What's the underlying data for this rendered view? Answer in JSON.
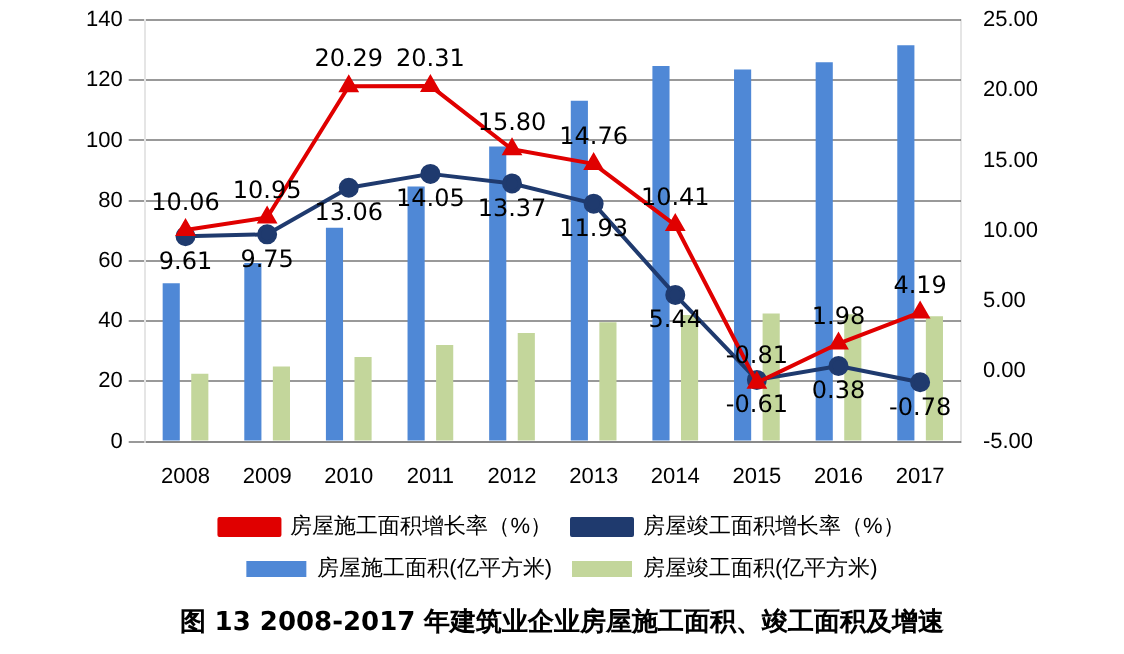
{
  "chart_data": {
    "type": "bar",
    "title": "图 13   2008-2017 年建筑业企业房屋施工面积、竣工面积及增速",
    "categories": [
      "2008",
      "2009",
      "2010",
      "2011",
      "2012",
      "2013",
      "2014",
      "2015",
      "2016",
      "2017"
    ],
    "series": [
      {
        "name": "房屋施工面积(亿平方米)",
        "color": "#4f88d6",
        "values": [
          52.6,
          59.3,
          71.0,
          84.7,
          98.0,
          113.2,
          124.7,
          123.6,
          126.0,
          131.6
        ]
      },
      {
        "name": "房屋竣工面积(亿平方米)",
        "color": "#c3d69b",
        "values": [
          22.5,
          24.9,
          28.1,
          32.1,
          36.1,
          39.6,
          42.0,
          42.5,
          42.3,
          41.6
        ]
      },
      {
        "name": "房屋施工面积增长率（%）",
        "type": "line",
        "axis": "y2",
        "color": "#e00000",
        "marker": "triangle",
        "values": [
          10.06,
          10.95,
          20.29,
          20.31,
          15.8,
          14.76,
          10.41,
          -0.81,
          1.98,
          4.19
        ],
        "value_labels": [
          "10.06",
          "10.95",
          "20.29",
          "20.31",
          "15.80",
          "14.76",
          "10.41",
          "-0.81",
          "1.98",
          "4.19"
        ]
      },
      {
        "name": "房屋竣工面积增长率（%）",
        "type": "line",
        "axis": "y2",
        "color": "#1f3a6e",
        "marker": "circle",
        "values": [
          9.61,
          9.75,
          13.06,
          14.05,
          13.37,
          11.93,
          5.44,
          -0.61,
          0.38,
          -0.78
        ],
        "value_labels": [
          "9.61",
          "9.75",
          "13.06",
          "14.05",
          "13.37",
          "11.93",
          "5.44",
          "-0.61",
          "0.38",
          "-0.78"
        ]
      }
    ],
    "ylim": [
      0,
      140
    ],
    "yticks": [
      0,
      20,
      40,
      60,
      80,
      100,
      120,
      140
    ],
    "y2lim": [
      -5,
      25
    ],
    "y2ticks": [
      {
        "value": -5,
        "label": "-5.00"
      },
      {
        "value": 0,
        "label": "0.00"
      },
      {
        "value": 5,
        "label": "5.00"
      },
      {
        "value": 10,
        "label": "10.00"
      },
      {
        "value": 15,
        "label": "15.00"
      },
      {
        "value": 20,
        "label": "20.00"
      },
      {
        "value": 25,
        "label": "25.00"
      }
    ],
    "grid": "y",
    "legend": "bottom"
  }
}
